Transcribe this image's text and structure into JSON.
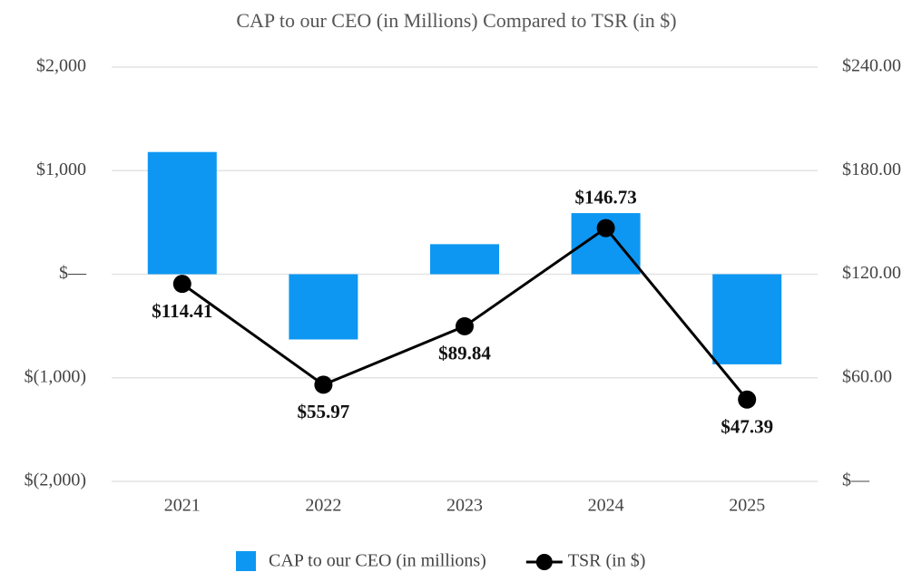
{
  "chart_data": {
    "type": "bar-line",
    "title": "CAP to our CEO (in Millions) Compared to TSR (in $)",
    "categories": [
      "2021",
      "2022",
      "2023",
      "2024",
      "2025"
    ],
    "series": [
      {
        "name": "CAP to our CEO (in millions)",
        "type": "bar",
        "color": "#0d97f2",
        "values": [
          1180,
          -630,
          290,
          590,
          -870
        ]
      },
      {
        "name": "TSR (in $)",
        "type": "line",
        "axis": "y2",
        "color": "#000000",
        "values": [
          114.41,
          55.97,
          89.84,
          146.73,
          47.39
        ],
        "value_labels": [
          "$114.41",
          "$55.97",
          "$89.84",
          "$146.73",
          "$47.39"
        ]
      }
    ],
    "ylim": [
      -2000,
      2000
    ],
    "yticks": [
      {
        "value": -2000,
        "label": "$(2,000)"
      },
      {
        "value": -1000,
        "label": "$(1,000)"
      },
      {
        "value": 0,
        "label": "$—"
      },
      {
        "value": 1000,
        "label": "$1,000"
      },
      {
        "value": 2000,
        "label": "$2,000"
      }
    ],
    "y2lim": [
      0,
      240
    ],
    "y2ticks": [
      {
        "value": 0,
        "label": "$—"
      },
      {
        "value": 60,
        "label": "$60.00"
      },
      {
        "value": 120,
        "label": "$120.00"
      },
      {
        "value": 180,
        "label": "$180.00"
      },
      {
        "value": 240,
        "label": "$240.00"
      }
    ],
    "grid": true,
    "legend": "bottom"
  }
}
